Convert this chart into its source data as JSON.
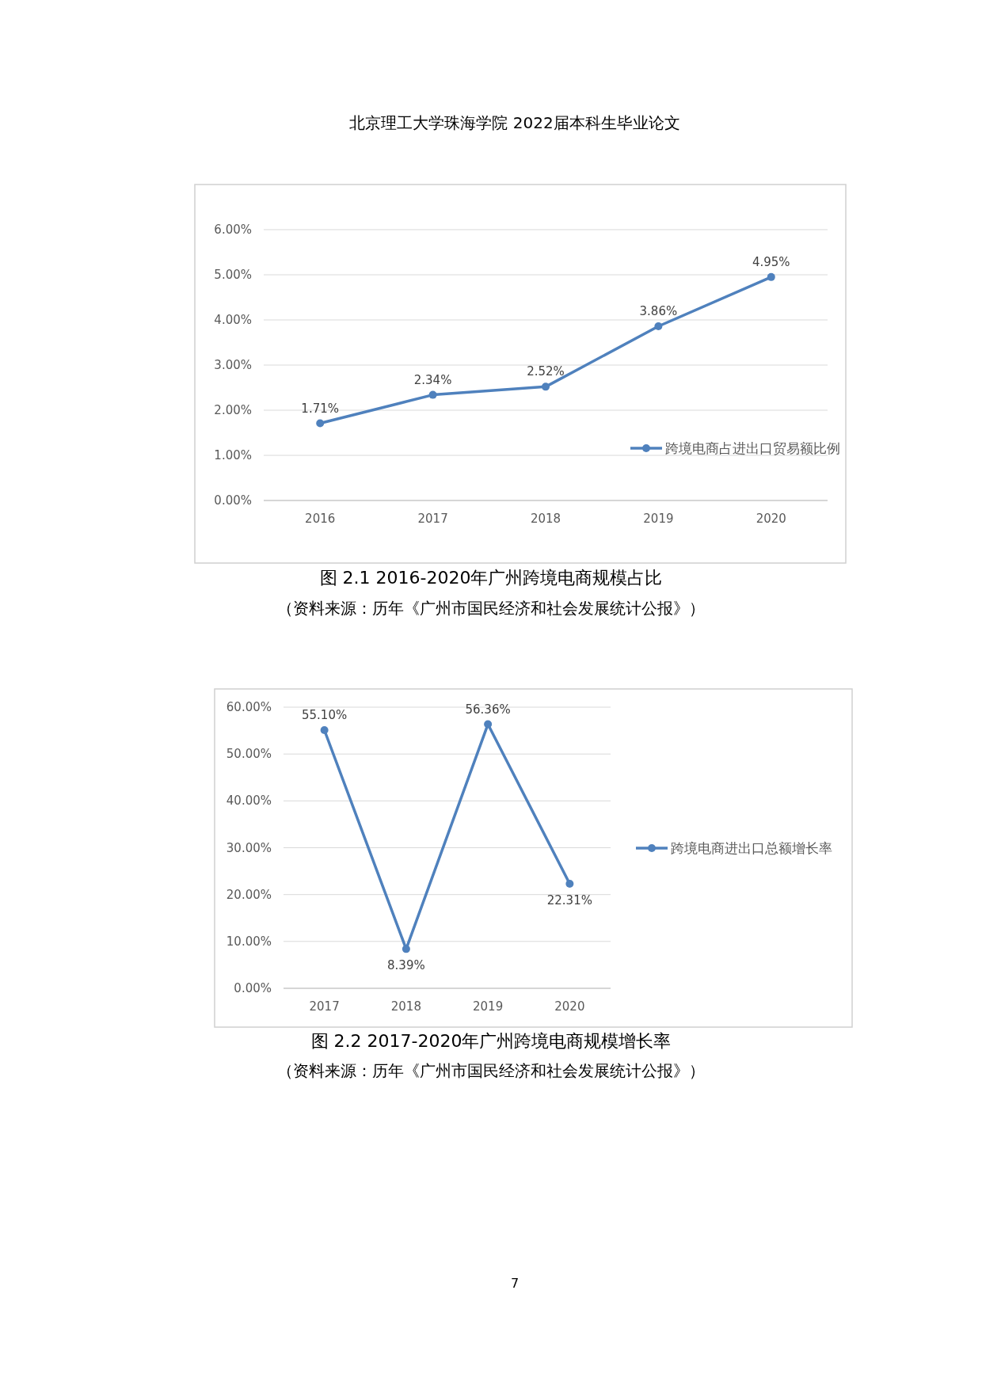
{
  "chart_data": [
    {
      "type": "line",
      "title": "图 2.1  2016-2020年广州跨境电商规模占比",
      "categories": [
        "2016",
        "2017",
        "2018",
        "2019",
        "2020"
      ],
      "series": [
        {
          "name": "跨境电商占进出口贸易额比例",
          "color": "#4f81bd",
          "values": [
            1.71,
            2.34,
            2.52,
            3.86,
            4.95
          ],
          "value_labels": [
            "1.71%",
            "2.34%",
            "2.52%",
            "3.86%",
            "4.95%"
          ]
        }
      ],
      "ylim": [
        0,
        6
      ],
      "yticks": [
        {
          "value": 0,
          "label": "0.00%"
        },
        {
          "value": 1,
          "label": "1.00%"
        },
        {
          "value": 2,
          "label": "2.00%"
        },
        {
          "value": 3,
          "label": "3.00%"
        },
        {
          "value": 4,
          "label": "4.00%"
        },
        {
          "value": 5,
          "label": "5.00%"
        },
        {
          "value": 6,
          "label": "6.00%"
        }
      ],
      "grid": "y",
      "legend": "bottom right",
      "marker": "circle",
      "line_style": "solid",
      "annotations": [
        "北京理工大学珠海学院 2022届本科生毕业论文",
        "（资料来源：历年《广州市国民经济和社会发展统计公报》）"
      ]
    },
    {
      "type": "line",
      "title": "图 2.2  2017-2020年广州跨境电商规模增长率",
      "categories": [
        "2017",
        "2018",
        "2019",
        "2020"
      ],
      "series": [
        {
          "name": "跨境电商进出口总额增长率",
          "color": "#4f81bd",
          "values": [
            55.1,
            8.39,
            56.36,
            22.31
          ],
          "value_labels": [
            "55.10%",
            "8.39%",
            "56.36%",
            "22.31%"
          ]
        }
      ],
      "ylim": [
        0,
        60
      ],
      "yticks": [
        {
          "value": 0,
          "label": "0.00%"
        },
        {
          "value": 10,
          "label": "10.00%"
        },
        {
          "value": 20,
          "label": "20.00%"
        },
        {
          "value": 30,
          "label": "30.00%"
        },
        {
          "value": 40,
          "label": "40.00%"
        },
        {
          "value": 50,
          "label": "50.00%"
        },
        {
          "value": 60,
          "label": "60.00%"
        }
      ],
      "grid": "y",
      "legend": "right",
      "marker": "circle",
      "line_style": "solid",
      "annotations": [
        "（资料来源：历年《广州市国民经济和社会发展统计公报》）",
        "7"
      ]
    }
  ]
}
